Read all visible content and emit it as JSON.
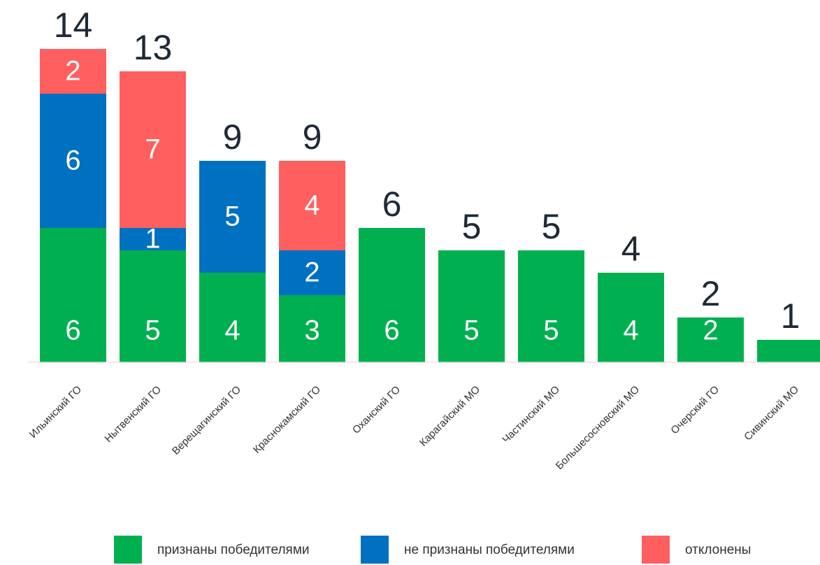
{
  "chart_data": {
    "type": "stacked_bar",
    "categories": [
      "Ильинский ГО",
      "Нытвенский ГО",
      "Верещагинский ГО",
      "Краснокамский ГО",
      "Оханский ГО",
      "Карагайский МО",
      "Частинский МО",
      "Большесосновский МО",
      "Очерский ГО",
      "Сивинский МО"
    ],
    "series": [
      {
        "name": "признаны победителями",
        "color": "#00b050",
        "values": [
          6,
          5,
          4,
          3,
          6,
          5,
          5,
          4,
          2,
          1
        ]
      },
      {
        "name": "не признаны победителями",
        "color": "#0070c0",
        "values": [
          6,
          1,
          5,
          2,
          null,
          null,
          null,
          null,
          null,
          null
        ]
      },
      {
        "name": "отклонены",
        "color": "#ff5f5f",
        "values": [
          2,
          7,
          null,
          4,
          null,
          null,
          null,
          null,
          null,
          null
        ]
      }
    ],
    "totals": [
      14,
      13,
      9,
      9,
      6,
      5,
      5,
      4,
      2,
      1
    ],
    "ylim": [
      0,
      14
    ],
    "legend": "bottom"
  }
}
